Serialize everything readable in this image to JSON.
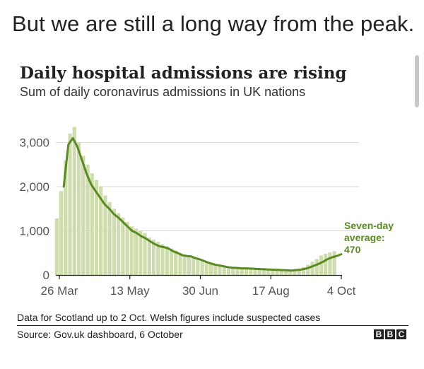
{
  "headline": "But we are still a long way from the peak.",
  "footer": {
    "note": "Data for Scotland up to 2 Oct. Welsh figures include suspected cases",
    "source": "Source: Gov.uk dashboard, 6 October",
    "logo": [
      "B",
      "B",
      "C"
    ]
  },
  "chart_data": {
    "type": "bar",
    "title": "Daily hospital admissions are rising",
    "subtitle": "Sum of daily coronavirus admissions in UK nations",
    "x_ticks": [
      "26 Mar",
      "13 May",
      "30 Jun",
      "17 Aug",
      "4 Oct"
    ],
    "y_ticks": [
      "0",
      "1,000",
      "2,000",
      "3,000"
    ],
    "ylim": [
      0,
      3600
    ],
    "grid": "horizontal",
    "colors": {
      "bars": "#cfdcad",
      "line": "#5a8a23",
      "annotation": "#5a8a23",
      "grid": "#d9d9d9"
    },
    "annotation": {
      "text_lines": [
        "Seven-day",
        "average:",
        "470"
      ],
      "value": 470
    },
    "series": [
      {
        "kind": "bars",
        "note": "daily admissions, every 4th day from 23 Mar",
        "values": [
          1280,
          1900,
          2600,
          3200,
          3350,
          3000,
          2700,
          2500,
          2300,
          2150,
          2000,
          1800,
          1650,
          1500,
          1400,
          1300,
          1200,
          1100,
          1050,
          1000,
          950,
          850,
          800,
          750,
          700,
          650,
          600,
          550,
          500,
          450,
          420,
          400,
          360,
          330,
          300,
          280,
          250,
          230,
          210,
          190,
          180,
          170,
          160,
          150,
          140,
          130,
          125,
          120,
          120,
          115,
          110,
          105,
          100,
          110,
          120,
          140,
          180,
          230,
          300,
          360,
          440,
          480,
          510,
          540
        ]
      },
      {
        "kind": "line",
        "name": "Seven-day average",
        "note": "every 4th day from 29 Mar",
        "values": [
          2000,
          2950,
          3100,
          2900,
          2600,
          2300,
          2050,
          1900,
          1750,
          1600,
          1500,
          1380,
          1300,
          1200,
          1100,
          1000,
          950,
          880,
          830,
          760,
          700,
          650,
          630,
          600,
          540,
          500,
          450,
          430,
          420,
          380,
          350,
          310,
          270,
          240,
          220,
          200,
          180,
          165,
          160,
          150,
          150,
          145,
          140,
          135,
          130,
          125,
          120,
          115,
          110,
          105,
          100,
          110,
          120,
          140,
          170,
          210,
          250,
          300,
          360,
          400,
          430,
          470
        ]
      }
    ]
  }
}
